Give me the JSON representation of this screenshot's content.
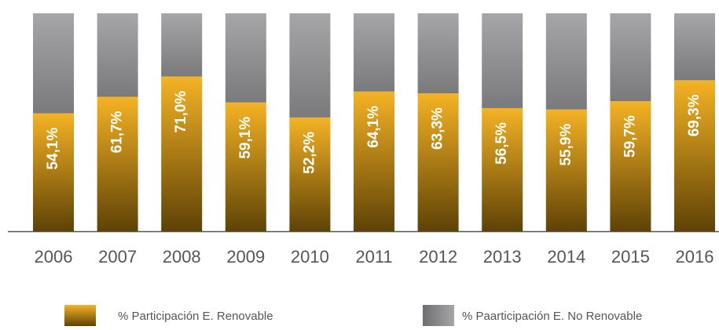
{
  "chart_data": {
    "type": "stacked_bar",
    "categories": [
      "2006",
      "2007",
      "2008",
      "2009",
      "2010",
      "2011",
      "2012",
      "2013",
      "2014",
      "2015",
      "2016"
    ],
    "series": [
      {
        "name": "% Participación E. Renovable",
        "color": "#f5b324",
        "values": [
          54.1,
          61.7,
          71.0,
          59.1,
          52.2,
          64.1,
          63.3,
          56.5,
          55.9,
          59.7,
          69.3
        ],
        "value_labels": [
          "54,1%",
          "61,7%",
          "71,0%",
          "59,1%",
          "52,2%",
          "64,1%",
          "63,3%",
          "56,5%",
          "55,9%",
          "59,7%",
          "69,3%"
        ]
      },
      {
        "name": "% Paarticipación E. No Renovable",
        "color": "#a6a6a8",
        "values": [
          45.9,
          38.3,
          29.0,
          40.9,
          47.8,
          35.9,
          36.7,
          43.5,
          44.1,
          40.3,
          30.7
        ]
      }
    ],
    "ylim": [
      0,
      100
    ]
  }
}
